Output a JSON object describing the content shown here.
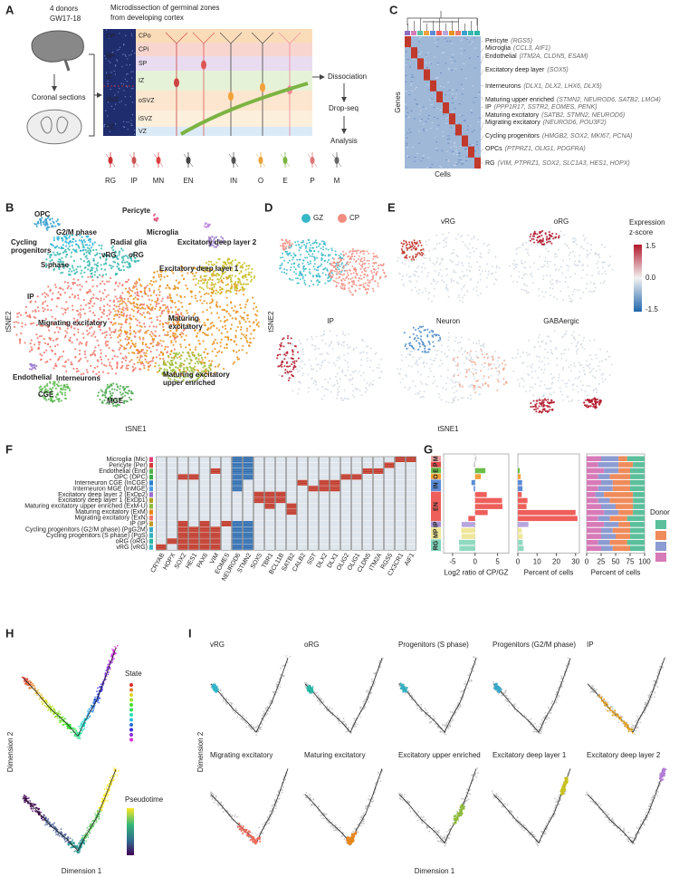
{
  "figure": {
    "A": {
      "letter": "A",
      "donors": "4 donors",
      "age": "GW17-18",
      "sections": "Coronal sections",
      "title": [
        "Microdissection of germinal zones",
        "from developing cortex"
      ],
      "image_zones": [
        "CP",
        "SP",
        "IZ",
        "SVZ",
        "VZ"
      ],
      "zones": [
        "CPo",
        "CPi",
        "SP",
        "IZ",
        "oSVZ",
        "iSVZ",
        "VZ"
      ],
      "steps": [
        "Dissociation",
        "Drop-seq",
        "Analysis"
      ],
      "cell_types": [
        "RG",
        "IP",
        "MN",
        "EN",
        "IN",
        "O",
        "E",
        "P",
        "M"
      ]
    },
    "C": {
      "letter": "C",
      "y_label": "Genes",
      "x_label": "Cells",
      "clusters": [
        {
          "name": "Pericyte",
          "genes": "(RGS5)"
        },
        {
          "name": "Microglia",
          "genes": "(CCL3, AIF1)"
        },
        {
          "name": "Endothelial",
          "genes": "(ITM2A, CLDN5, ESAM)"
        },
        {
          "name": "Excitatory deep layer",
          "genes": "(SOX5)"
        },
        {
          "name": "Interneurons",
          "genes": "(DLX1, DLX2, LHX6, DLX5)"
        },
        {
          "name": "Maturing upper enriched",
          "genes": "(STMN2, NEUROD6, SATB2, LMO4)"
        },
        {
          "name": "IP",
          "genes": "(PPP1R17, SSTR2, EOMES, PENK)"
        },
        {
          "name": "Maturing excitatory",
          "genes": "(SATB2, STMN2, NEUROD6)"
        },
        {
          "name": "Migrating excitatory",
          "genes": "(NEUROD6, POU3F2)"
        },
        {
          "name": "Cycling progenitors",
          "genes": "(HMGB2, SOX2, MKI67, PCNA)"
        },
        {
          "name": "OPCs",
          "genes": "(PTPRZ1, OLIG1, PDGFRA)"
        },
        {
          "name": "RG",
          "genes": "(VIM, PTPRZ1, SOX2, SLC1A3, HES1, HOPX)"
        }
      ]
    },
    "B": {
      "letter": "B",
      "x_label": "tSNE1",
      "y_label": "tSNE2",
      "labels": [
        [
          "OPC"
        ],
        [
          "G2/M phase"
        ],
        [
          "Cycling",
          "progenitors"
        ],
        [
          "S-phase"
        ],
        [
          "Radial glia"
        ],
        [
          "vRG"
        ],
        [
          "oRG"
        ],
        [
          "Pericyte"
        ],
        [
          "Microglia"
        ],
        [
          "Excitatory deep layer 2"
        ],
        [
          "Excitatory deep layer 1"
        ],
        [
          "IP"
        ],
        [
          "Migrating excitatory"
        ],
        [
          "Maturing",
          "excitatory"
        ],
        [
          "Endothelial"
        ],
        [
          "Interneurons"
        ],
        [
          "CGE"
        ],
        [
          "MGE"
        ],
        [
          "Maturing excitatory",
          "upper enriched"
        ]
      ]
    },
    "D": {
      "letter": "D",
      "legend": [
        "GZ",
        "CP"
      ]
    },
    "E": {
      "letter": "E",
      "maps": [
        "vRG",
        "oRG",
        "IP",
        "Neuron",
        "GABAergic"
      ],
      "colorbar_title": [
        "Expression",
        "z-score"
      ],
      "colorbar_ticks": [
        "1.5",
        "0.0",
        "-1.5"
      ],
      "x_label": "tSNE1",
      "y_label": "tSNE2"
    },
    "F": {
      "letter": "F",
      "rows": [
        "Microglia (Mic)",
        "Pericyte (Per)",
        "Endothelial (End)",
        "OPC (OPC)",
        "Interneuron CGE (InCGE)",
        "Interneuron MGE (InMGE)",
        "Excitatory deep layer 2 (ExDp2)",
        "Excitatory deep layer 1 (ExDp1)",
        "Maturing excitatory upper enriched (ExM-U)",
        "Maturing excitatory (ExM)",
        "Migrating excitatory (ExN)",
        "IP (IP)",
        "Cycling progenitors (G2/M phase) (PgG2M)",
        "Cycling progenitors (S phase) (PgS)",
        "oRG (oRG)",
        "vRG (vRG)"
      ],
      "genes": [
        "CRYAB",
        "HOPX",
        "SOX2",
        "HES1",
        "PAX6",
        "VIM",
        "EOMES",
        "NEUROD6",
        "STMN2",
        "SOX5",
        "TBR1",
        "BCL11B",
        "SATB2",
        "CALB2",
        "SST",
        "DLX2",
        "DLX1",
        "OLIG2",
        "OLIG1",
        "CLDN5",
        "ITM2A",
        "RGS5",
        "CX3CR1",
        "AIF1"
      ]
    },
    "G": {
      "letter": "G"
    },
    "H": {
      "letter": "H",
      "state_title": "State",
      "pseudotime_title": "Pseudotime",
      "x_label": "Dimension 1",
      "y_label": "Dimension 2"
    },
    "I": {
      "letter": "I",
      "panels": [
        "vRG",
        "oRG",
        "Progenitors (S phase)",
        "Progenitors (G2/M phase)",
        "IP",
        "Migrating excitatory",
        "Maturing excitatory",
        "Excitatory upper enriched",
        "Excitatory deep layer 1",
        "Excitatory deep layer 2"
      ],
      "x_label": "Dimension 1",
      "y_label": "Dimension 2"
    }
  },
  "chart_data": [
    {
      "type": "bar",
      "orientation": "horizontal",
      "x_label": "Log2 ratio of CP/GZ",
      "xlim": [
        -7,
        7.5
      ],
      "xticks": [
        -5,
        0,
        5
      ],
      "values": [
        0.3,
        -0.3,
        2.3,
        1.3,
        -0.8,
        -0.3,
        2.6,
        6.0,
        6.1,
        2.8,
        -1.5,
        -3.0,
        -3.1,
        -3.0,
        -3.6,
        -3.5
      ],
      "colors": [
        "#cccccc",
        "#cccccc",
        "#6cbf4a",
        "#f2a23a",
        "#5b8bd6",
        "#5b8bd6",
        "#ee5f5b",
        "#ee5f5b",
        "#ee5f5b",
        "#ee5f5b",
        "#ee5f5b",
        "#b7a6dd",
        "#efe79a",
        "#efe79a",
        "#8fd9c0",
        "#8fd9c0"
      ],
      "groups": [
        {
          "label": "M",
          "color": "#e9a3a3",
          "span": 1
        },
        {
          "label": "P",
          "color": "#e04c4c",
          "span": 1
        },
        {
          "label": "E",
          "color": "#6cbf4a",
          "span": 1
        },
        {
          "label": "O",
          "color": "#f2a23a",
          "span": 1
        },
        {
          "label": "IN",
          "color": "#5b8bd6",
          "span": 2
        },
        {
          "label": "EN",
          "color": "#ee5f5b",
          "span": 5
        },
        {
          "label": "IP",
          "color": "#a58fd0",
          "span": 1
        },
        {
          "label": "MP",
          "color": "#efe79a",
          "span": 2
        },
        {
          "label": "RG",
          "color": "#7dd3b8",
          "span": 2
        }
      ]
    },
    {
      "type": "bar",
      "orientation": "horizontal",
      "x_label": "Percent of cells",
      "xlim": [
        0,
        32
      ],
      "xticks": [
        0,
        10,
        20,
        30
      ],
      "values": [
        0.4,
        0.3,
        1.0,
        1.5,
        2.2,
        2.4,
        2.0,
        5.0,
        4.5,
        30.0,
        31.0,
        5.5,
        2.0,
        2.5,
        2.5,
        3.0
      ],
      "colors": [
        "#cccccc",
        "#cccccc",
        "#6cbf4a",
        "#f2a23a",
        "#5b8bd6",
        "#5b8bd6",
        "#ee5f5b",
        "#ee5f5b",
        "#ee5f5b",
        "#ee5f5b",
        "#ee5f5b",
        "#b7a6dd",
        "#efe79a",
        "#efe79a",
        "#8fd9c0",
        "#8fd9c0"
      ]
    },
    {
      "type": "stacked_bar",
      "orientation": "horizontal",
      "x_label": "Percent of cells",
      "xlim": [
        0,
        100
      ],
      "xticks": [
        0,
        25,
        50,
        75,
        100
      ],
      "legend_title": "Donor",
      "series": [
        {
          "color": "#d77ab8",
          "values": [
            25,
            20,
            30,
            20,
            25,
            20,
            15,
            20,
            25,
            30,
            20,
            30,
            25,
            25,
            20,
            25
          ]
        },
        {
          "color": "#8c9bd1",
          "values": [
            30,
            35,
            25,
            20,
            20,
            25,
            15,
            20,
            25,
            25,
            20,
            25,
            20,
            25,
            20,
            20
          ]
        },
        {
          "color": "#f08b5b",
          "values": [
            15,
            25,
            20,
            35,
            30,
            30,
            50,
            40,
            30,
            25,
            30,
            20,
            30,
            25,
            30,
            30
          ]
        },
        {
          "color": "#5bbf9c",
          "values": [
            30,
            20,
            25,
            25,
            25,
            25,
            20,
            20,
            20,
            20,
            30,
            25,
            25,
            25,
            30,
            25
          ]
        }
      ]
    }
  ]
}
